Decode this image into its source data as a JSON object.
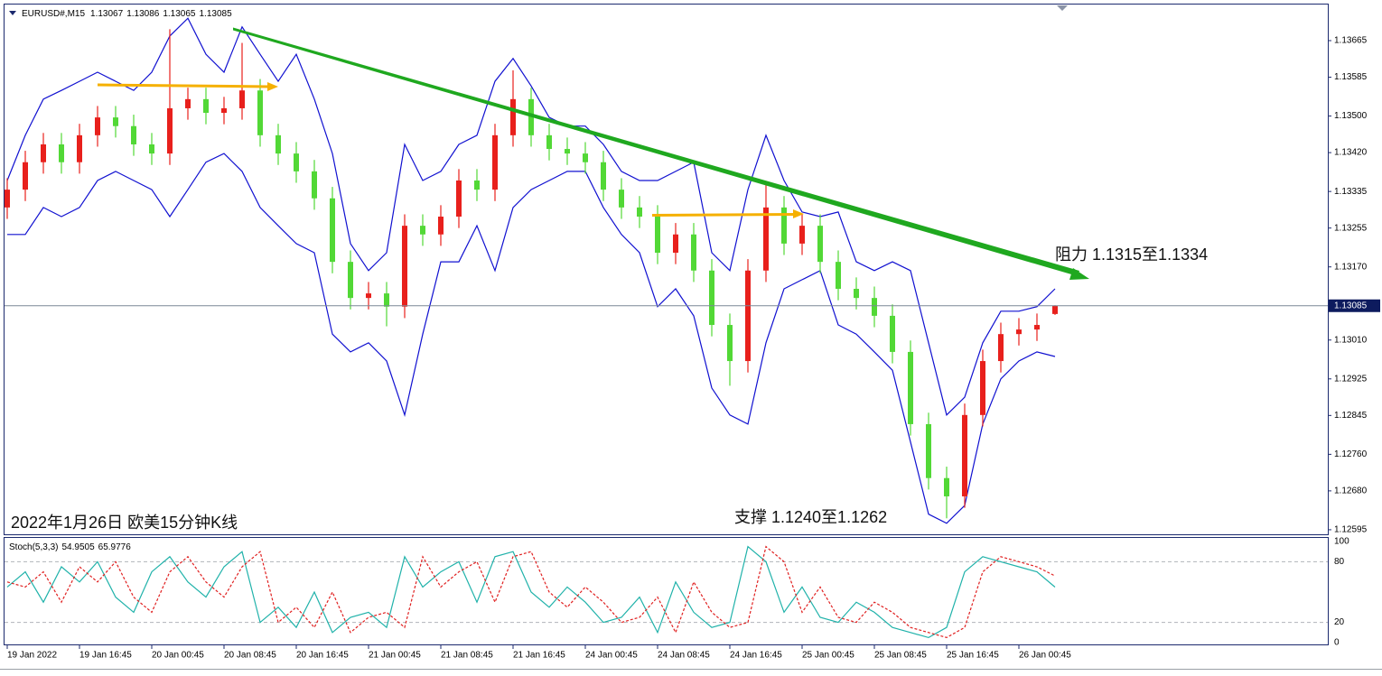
{
  "chart_data": [
    {
      "type": "candlestick",
      "symbol": "EURUSD#,M15",
      "header_values": [
        1.13067,
        1.13086,
        1.13065,
        1.13085
      ],
      "annotations": [
        "阻力 1.1315至1.1334",
        "支撑 1.1240至1.1262",
        "2022年1月26日 欧美15分钟K线"
      ],
      "categories": [
        "19 Jan 2022",
        null,
        null,
        null,
        "19 Jan 16:45",
        null,
        null,
        null,
        "20 Jan 00:45",
        null,
        null,
        null,
        "20 Jan 08:45",
        null,
        null,
        null,
        "20 Jan 16:45",
        null,
        null,
        null,
        "21 Jan 00:45",
        null,
        null,
        null,
        "21 Jan 08:45",
        null,
        null,
        null,
        "21 Jan 16:45",
        null,
        null,
        null,
        "24 Jan 00:45",
        null,
        null,
        null,
        "24 Jan 08:45",
        null,
        null,
        null,
        "24 Jan 16:45",
        null,
        null,
        null,
        "25 Jan 00:45",
        null,
        null,
        null,
        "25 Jan 08:45",
        null,
        null,
        null,
        "25 Jan 16:45",
        null,
        null,
        null,
        "26 Jan 00:45",
        null,
        null
      ],
      "open": [
        1.133,
        1.13339,
        1.13399,
        1.13438,
        1.13399,
        1.13458,
        1.13497,
        1.13478,
        1.13438,
        1.13418,
        1.13517,
        1.13537,
        1.13507,
        1.13517,
        1.13556,
        1.13458,
        1.13418,
        1.13379,
        1.1332,
        1.13181,
        1.13102,
        1.13112,
        1.13083,
        1.1326,
        1.13241,
        1.1328,
        1.13359,
        1.13339,
        1.13458,
        1.13537,
        1.13458,
        1.13428,
        1.13418,
        1.13399,
        1.13339,
        1.133,
        1.1328,
        1.13201,
        1.13241,
        1.13162,
        1.13043,
        1.12964,
        1.13162,
        1.133,
        1.13221,
        1.1326,
        1.13181,
        1.13122,
        1.13102,
        1.13063,
        1.12984,
        1.12826,
        1.12708,
        1.12668,
        1.12846,
        1.12964,
        1.13023,
        1.13033,
        1.13067
      ],
      "high": [
        1.13364,
        1.13424,
        1.13463,
        1.13463,
        1.13483,
        1.13522,
        1.13522,
        1.13503,
        1.13463,
        1.1369,
        1.13562,
        1.13562,
        1.13542,
        1.1366,
        1.13581,
        1.13483,
        1.13443,
        1.13404,
        1.13345,
        1.13206,
        1.13137,
        1.13137,
        1.13285,
        1.13285,
        1.13305,
        1.13384,
        1.13384,
        1.13483,
        1.136,
        1.13562,
        1.13483,
        1.13453,
        1.13443,
        1.13424,
        1.13364,
        1.13325,
        1.13305,
        1.13266,
        1.13266,
        1.13187,
        1.13068,
        1.13187,
        1.1335,
        1.13325,
        1.13285,
        1.13285,
        1.13206,
        1.13147,
        1.13127,
        1.13088,
        1.13009,
        1.12851,
        1.12733,
        1.12871,
        1.12989,
        1.13048,
        1.13058,
        1.13068,
        1.13086
      ],
      "low": [
        1.13275,
        1.13314,
        1.13374,
        1.13374,
        1.13374,
        1.13433,
        1.13453,
        1.13413,
        1.13393,
        1.13393,
        1.13492,
        1.13482,
        1.13482,
        1.13492,
        1.13433,
        1.13393,
        1.13354,
        1.13295,
        1.13156,
        1.13077,
        1.13077,
        1.1304,
        1.13058,
        1.13216,
        1.13216,
        1.13255,
        1.13314,
        1.13314,
        1.13433,
        1.13433,
        1.13403,
        1.13393,
        1.13374,
        1.13314,
        1.13275,
        1.13255,
        1.13176,
        1.13176,
        1.13137,
        1.13018,
        1.1291,
        1.12939,
        1.13137,
        1.13196,
        1.13196,
        1.13156,
        1.13097,
        1.13077,
        1.13038,
        1.12959,
        1.12801,
        1.12683,
        1.1262,
        1.12643,
        1.12821,
        1.12939,
        1.12998,
        1.13008,
        1.13065
      ],
      "close": [
        1.13339,
        1.13399,
        1.13438,
        1.13399,
        1.13458,
        1.13497,
        1.13478,
        1.13438,
        1.13418,
        1.13517,
        1.13537,
        1.13507,
        1.13517,
        1.13556,
        1.13458,
        1.13418,
        1.13379,
        1.1332,
        1.13181,
        1.13102,
        1.13112,
        1.13083,
        1.1326,
        1.13241,
        1.1328,
        1.13359,
        1.13339,
        1.13458,
        1.13537,
        1.13458,
        1.13428,
        1.13418,
        1.13399,
        1.13339,
        1.133,
        1.1328,
        1.13201,
        1.13241,
        1.13162,
        1.13043,
        1.12964,
        1.13162,
        1.133,
        1.13221,
        1.1326,
        1.13181,
        1.13122,
        1.13102,
        1.13063,
        1.12984,
        1.12826,
        1.12708,
        1.12668,
        1.12846,
        1.12964,
        1.13023,
        1.13033,
        1.13043,
        1.13085
      ],
      "up_color": "#e8201c",
      "down_color": "#52d836",
      "bands": {
        "color": "#1010d0",
        "upper": [
          1.13359,
          1.13458,
          1.13537,
          1.13556,
          1.13576,
          1.13596,
          1.13576,
          1.13556,
          1.13596,
          1.13675,
          1.13714,
          1.13635,
          1.13596,
          1.13695,
          1.13635,
          1.13576,
          1.13635,
          1.13537,
          1.13418,
          1.13221,
          1.13162,
          1.13201,
          1.13438,
          1.13359,
          1.13379,
          1.13438,
          1.13458,
          1.13576,
          1.13626,
          1.13566,
          1.13497,
          1.13478,
          1.13478,
          1.13438,
          1.13379,
          1.13359,
          1.13359,
          1.13379,
          1.13399,
          1.13201,
          1.13162,
          1.13339,
          1.13458,
          1.13359,
          1.1329,
          1.1328,
          1.1329,
          1.13181,
          1.13162,
          1.13181,
          1.13162,
          1.13004,
          1.12846,
          1.12885,
          1.13004,
          1.13073,
          1.13073,
          1.13083,
          1.13122
        ],
        "lower": [
          1.13241,
          1.13241,
          1.133,
          1.1328,
          1.133,
          1.13359,
          1.13379,
          1.13359,
          1.13339,
          1.1328,
          1.13339,
          1.13399,
          1.13418,
          1.13379,
          1.133,
          1.1326,
          1.13221,
          1.13201,
          1.13023,
          1.12984,
          1.13004,
          1.12964,
          1.12846,
          1.13023,
          1.13181,
          1.13181,
          1.1326,
          1.13162,
          1.133,
          1.13339,
          1.13359,
          1.13379,
          1.13379,
          1.133,
          1.13241,
          1.13201,
          1.13083,
          1.13122,
          1.13063,
          1.12905,
          1.12846,
          1.12826,
          1.13004,
          1.13122,
          1.13142,
          1.13162,
          1.13043,
          1.13023,
          1.12984,
          1.12944,
          1.12787,
          1.12629,
          1.12609,
          1.12648,
          1.12826,
          1.12925,
          1.12964,
          1.12984,
          1.12974
        ]
      },
      "ylim": [
        1.12585,
        1.13744
      ],
      "yticks": [
        1.12595,
        {
          "value": 1.1268,
          "label": "1.12680"
        },
        {
          "value": 1.1276,
          "label": "1.12760"
        },
        1.12845,
        1.12925,
        {
          "value": 1.1301,
          "label": "1.13010"
        },
        {
          "value": 1.1317,
          "label": "1.13170"
        },
        1.13255,
        1.13335,
        {
          "value": 1.1342,
          "label": "1.13420"
        },
        {
          "value": 1.135,
          "label": "1.13500"
        },
        1.13585,
        1.13665
      ],
      "grid": false
    },
    {
      "type": "line",
      "title": "Stoch(5,3,3)",
      "series": [
        {
          "color": "#20b2aa",
          "dashed": false,
          "values": [
            55,
            70,
            40,
            75,
            60,
            80,
            45,
            30,
            70,
            85,
            60,
            45,
            75,
            90,
            20,
            35,
            15,
            50,
            10,
            25,
            30,
            15,
            85,
            55,
            70,
            80,
            40,
            85,
            90,
            50,
            35,
            55,
            40,
            20,
            25,
            45,
            10,
            60,
            30,
            15,
            20,
            95,
            80,
            30,
            55,
            25,
            20,
            40,
            30,
            15,
            10,
            5,
            15,
            70,
            85,
            80,
            75,
            70,
            54.9505
          ]
        },
        {
          "color": "#e02020",
          "dashed": true,
          "values": [
            60,
            55,
            70,
            40,
            75,
            60,
            80,
            45,
            30,
            70,
            85,
            60,
            45,
            75,
            90,
            20,
            35,
            15,
            50,
            10,
            25,
            30,
            15,
            85,
            55,
            70,
            80,
            40,
            85,
            90,
            50,
            35,
            55,
            40,
            20,
            25,
            45,
            10,
            60,
            30,
            15,
            20,
            95,
            80,
            30,
            55,
            25,
            20,
            40,
            30,
            15,
            10,
            5,
            15,
            70,
            85,
            80,
            75,
            65.9776
          ]
        }
      ],
      "ylim": [
        0,
        100
      ],
      "yticks": [
        0,
        20,
        80,
        100
      ]
    }
  ]
}
